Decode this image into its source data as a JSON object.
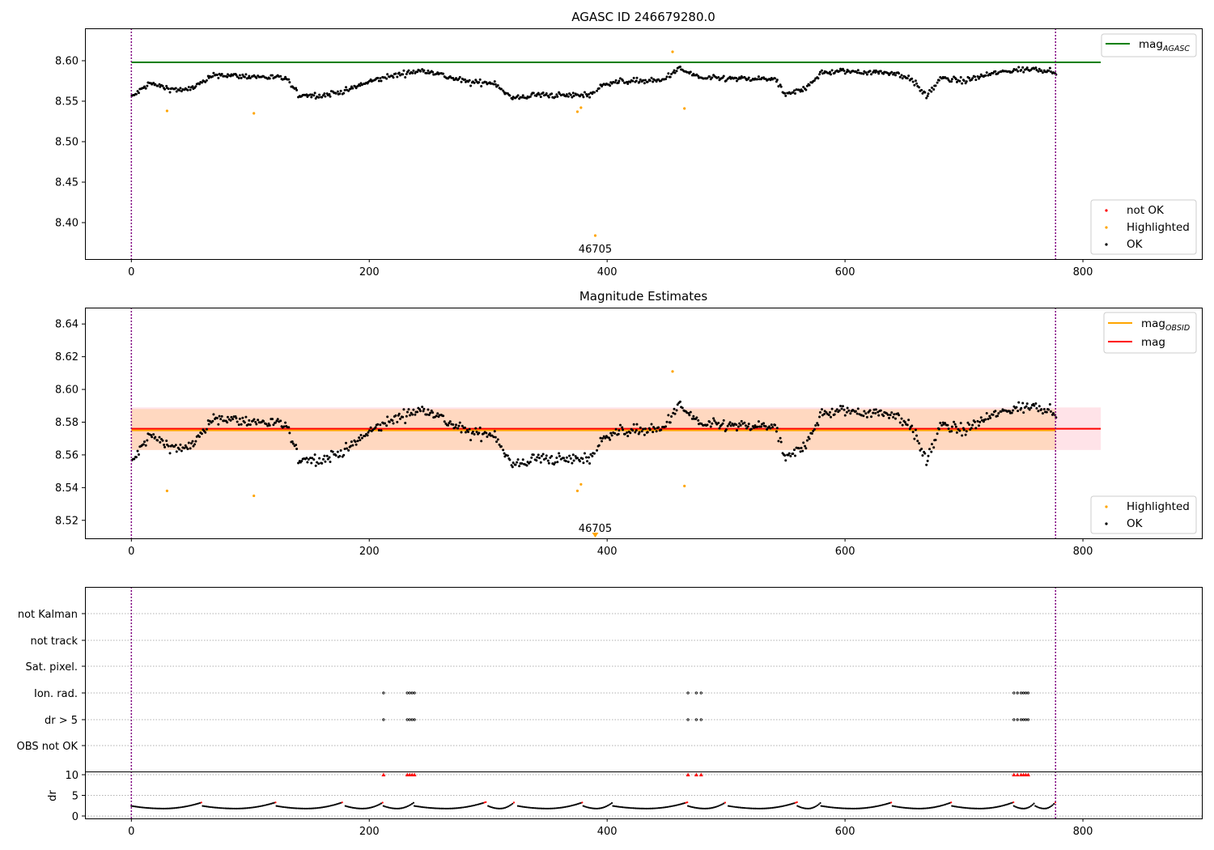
{
  "figure": {
    "x_ticks": [
      "0",
      "200",
      "400",
      "600",
      "800"
    ],
    "obs_marker_lines": [
      0,
      777
    ],
    "dropout_annotation": "46705"
  },
  "colors": {
    "ok": "#000000",
    "highlighted": "#ffa500",
    "not_ok": "#ff0000",
    "mag_agasc_line": "#008000",
    "mag_obsid_line": "#ffa500",
    "mag_line": "#ff0000",
    "obs_band": "#ffd7be",
    "global_band": "#ffe0e6",
    "vline": "#800080"
  },
  "panel1": {
    "title": "AGASC ID 246679280.0",
    "y_ticks": [
      "8.40",
      "8.45",
      "8.50",
      "8.55",
      "8.60"
    ],
    "legend_lines": [
      {
        "label": "mag",
        "sub": "AGASC",
        "color": "#008000"
      }
    ],
    "legend_points": [
      {
        "label": "not OK",
        "color": "#ff0000"
      },
      {
        "label": "Highlighted",
        "color": "#ffa500"
      },
      {
        "label": "OK",
        "color": "#000000"
      }
    ]
  },
  "panel2": {
    "title": "Magnitude Estimates",
    "y_ticks": [
      "8.52",
      "8.54",
      "8.56",
      "8.58",
      "8.60",
      "8.62",
      "8.64"
    ],
    "legend_lines": [
      {
        "label": "mag",
        "sub": "OBSID",
        "color": "#ffa500"
      },
      {
        "label": "mag",
        "sub": "",
        "color": "#ff0000"
      }
    ],
    "legend_points": [
      {
        "label": "Highlighted",
        "color": "#ffa500"
      },
      {
        "label": "OK",
        "color": "#000000"
      }
    ]
  },
  "panel3": {
    "flag_labels": [
      "not Kalman",
      "not track",
      "Sat. pixel.",
      "Ion. rad.",
      "dr > 5",
      "OBS not OK"
    ],
    "dr_label": "dr",
    "dr_ticks": [
      "0",
      "5",
      "10"
    ]
  },
  "chart_data": [
    {
      "type": "scatter",
      "title": "AGASC ID 246679280.0",
      "xlabel": "",
      "ylabel": "",
      "xlim": [
        -39,
        900
      ],
      "ylim": [
        8.355,
        8.64
      ],
      "series": [
        {
          "name": "mag AGASC",
          "type": "line",
          "x": [
            0,
            815
          ],
          "y": [
            8.598,
            8.598
          ]
        },
        {
          "name": "Highlighted",
          "x": [
            30,
            103,
            375,
            378,
            390,
            455,
            465
          ],
          "y": [
            8.538,
            8.535,
            8.537,
            8.542,
            8.384,
            8.611,
            8.541
          ]
        },
        {
          "name": "OK",
          "generated": "dense photometry, ~780 points around 8.55-8.60",
          "x_range": [
            0,
            777
          ]
        }
      ],
      "annotations": [
        {
          "x": 390,
          "text": "46705"
        }
      ],
      "legend": "top-right and bottom-right",
      "grid": false
    },
    {
      "type": "scatter",
      "title": "Magnitude Estimates",
      "xlabel": "",
      "ylabel": "",
      "xlim": [
        -39,
        900
      ],
      "ylim": [
        8.509,
        8.65
      ],
      "series": [
        {
          "name": "mag OBSID",
          "type": "line",
          "x": [
            0,
            777
          ],
          "y": [
            8.575,
            8.575
          ]
        },
        {
          "name": "mag",
          "type": "line",
          "x": [
            0,
            815
          ],
          "y": [
            8.576,
            8.576
          ]
        },
        {
          "name": "Highlighted",
          "x": [
            30,
            103,
            375,
            378,
            455,
            465
          ],
          "y": [
            8.538,
            8.535,
            8.538,
            8.542,
            8.611,
            8.541
          ]
        },
        {
          "name": "OK",
          "generated": "same photometry as panel 1",
          "x_range": [
            0,
            777
          ]
        }
      ],
      "bands": [
        {
          "name": "mag OBSID band",
          "y": [
            8.563,
            8.588
          ],
          "x": [
            0,
            777
          ]
        },
        {
          "name": "mag band",
          "y": [
            8.563,
            8.589
          ],
          "x": [
            0,
            815
          ]
        }
      ],
      "annotations": [
        {
          "x": 390,
          "text": "46705"
        }
      ],
      "legend": "top-right and bottom-right",
      "grid": false
    },
    {
      "type": "scatter",
      "title": "",
      "flag_rows": [
        "not Kalman",
        "not track",
        "Sat. pixel.",
        "Ion. rad.",
        "dr > 5",
        "OBS not OK"
      ],
      "flag_points_x": [
        212,
        232,
        234,
        236,
        238,
        468,
        475,
        479,
        742,
        745,
        748,
        750,
        752,
        754
      ],
      "flag_points_rows": [
        "Ion. rad.",
        "dr > 5"
      ],
      "dr_ylim": [
        0,
        10
      ],
      "dr_clipped_x": [
        212,
        232,
        234,
        236,
        238,
        468,
        475,
        479,
        742,
        745,
        748,
        750,
        752,
        754
      ],
      "xlim": [
        -39,
        900
      ]
    }
  ]
}
